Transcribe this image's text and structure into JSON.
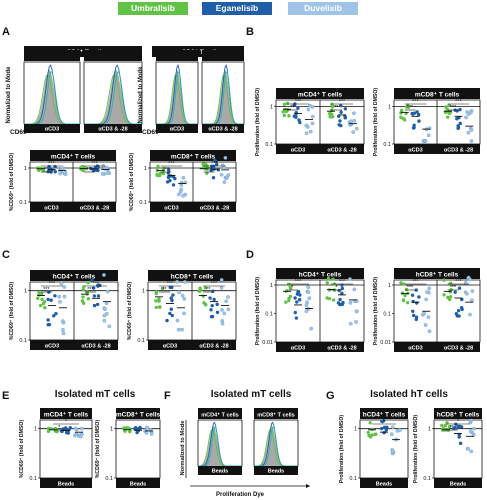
{
  "legend": [
    {
      "label": "Umbralisib",
      "color": "#62c246"
    },
    {
      "label": "Eganelisib",
      "color": "#1f5fa8"
    },
    {
      "label": "Duvelisib",
      "color": "#9fc4e8"
    }
  ],
  "panel_labels": {
    "a": "A",
    "b": "B",
    "c": "C",
    "d": "D",
    "e": "E",
    "f": "F",
    "g": "G"
  },
  "section_titles": {
    "e": "Isolated mT cells",
    "f": "Isolated mT cells",
    "g": "Isolated hT cells"
  },
  "headers": {
    "mcd4": "mCD4⁺ T cells",
    "mcd8": "mCD8⁺ T cells",
    "hcd4": "hCD4⁺ T cells",
    "hcd8": "hCD8⁺ T cells"
  },
  "axis": {
    "normalized_to_mode": "Normalized to Mode",
    "cd69": "CD69",
    "proliferation_dye": "Proliferation Dye",
    "pct_cd69": "%CD69⁺ (fold of DMSO)",
    "proliferation": "Proliferation (fold of DMSO)",
    "acd3": "αCD3",
    "acd3_28": "αCD3 & -28",
    "beads": "Beads"
  },
  "sig": {
    "three": "***",
    "two": "**",
    "one": "*"
  },
  "ticks": {
    "t1": "1",
    "t01": "0.1",
    "t001": "0.01"
  },
  "chart_data": [
    {
      "panel": "A-bottom-left",
      "type": "scatter",
      "title": "mCD4⁺ T cells",
      "ylabel": "%CD69⁺ (fold of DMSO)",
      "yscale": "log",
      "categories": [
        "αCD3",
        "αCD3 & -28"
      ],
      "series": [
        {
          "name": "Umbralisib",
          "values": [
            0.95,
            0.97
          ]
        },
        {
          "name": "Eganelisib",
          "values": [
            0.9,
            0.94
          ]
        },
        {
          "name": "Duvelisib",
          "values": [
            0.85,
            0.9
          ]
        }
      ]
    },
    {
      "panel": "A-bottom-right",
      "type": "scatter",
      "title": "mCD8⁺ T cells",
      "ylabel": "%CD69⁺ (fold of DMSO)",
      "yscale": "log",
      "categories": [
        "αCD3",
        "αCD3 & -28"
      ],
      "series": [
        {
          "name": "Umbralisib",
          "values": [
            0.85,
            0.95
          ]
        },
        {
          "name": "Eganelisib",
          "values": [
            0.6,
            0.92
          ]
        },
        {
          "name": "Duvelisib",
          "values": [
            0.35,
            0.88
          ]
        }
      ]
    },
    {
      "panel": "B-left",
      "type": "scatter",
      "title": "mCD4⁺ T cells",
      "ylabel": "Proliferation (fold of DMSO)",
      "yscale": "log",
      "categories": [
        "αCD3",
        "αCD3 & -28"
      ],
      "series": [
        {
          "name": "Umbralisib",
          "values": [
            0.85,
            0.75
          ]
        },
        {
          "name": "Eganelisib",
          "values": [
            0.65,
            0.6
          ]
        },
        {
          "name": "Duvelisib",
          "values": [
            0.45,
            0.35
          ]
        }
      ]
    },
    {
      "panel": "B-right",
      "type": "scatter",
      "title": "mCD8⁺ T cells",
      "ylabel": "Proliferation (fold of DMSO)",
      "yscale": "log",
      "categories": [
        "αCD3",
        "αCD3 & -28"
      ],
      "series": [
        {
          "name": "Umbralisib",
          "values": [
            0.7,
            0.75
          ]
        },
        {
          "name": "Eganelisib",
          "values": [
            0.55,
            0.55
          ]
        },
        {
          "name": "Duvelisib",
          "values": [
            0.25,
            0.3
          ]
        }
      ]
    },
    {
      "panel": "C-left",
      "type": "scatter",
      "title": "hCD4⁺ T cells",
      "ylabel": "%CD69⁺ (fold of DMSO)",
      "yscale": "log",
      "categories": [
        "αCD3",
        "αCD3 & -28"
      ],
      "series": [
        {
          "name": "Umbralisib",
          "values": [
            0.8,
            0.85
          ]
        },
        {
          "name": "Eganelisib",
          "values": [
            0.5,
            0.7
          ]
        },
        {
          "name": "Duvelisib",
          "values": [
            0.45,
            0.6
          ]
        }
      ]
    },
    {
      "panel": "C-right",
      "type": "scatter",
      "title": "hCD8⁺ T cells",
      "ylabel": "%CD69⁺ (fold of DMSO)",
      "yscale": "log",
      "categories": [
        "αCD3",
        "αCD3 & -28"
      ],
      "series": [
        {
          "name": "Umbralisib",
          "values": [
            0.75,
            0.8
          ]
        },
        {
          "name": "Eganelisib",
          "values": [
            0.55,
            0.6
          ]
        },
        {
          "name": "Duvelisib",
          "values": [
            0.45,
            0.5
          ]
        }
      ]
    },
    {
      "panel": "D-left",
      "type": "scatter",
      "title": "hCD4⁺ T cells",
      "ylabel": "Proliferation (fold of DMSO)",
      "yscale": "log",
      "categories": [
        "αCD3",
        "αCD3 & -28"
      ],
      "series": [
        {
          "name": "Umbralisib",
          "values": [
            0.6,
            0.7
          ]
        },
        {
          "name": "Eganelisib",
          "values": [
            0.2,
            0.45
          ]
        },
        {
          "name": "Duvelisib",
          "values": [
            0.15,
            0.3
          ]
        }
      ]
    },
    {
      "panel": "D-right",
      "type": "scatter",
      "title": "hCD8⁺ T cells",
      "ylabel": "Proliferation (fold of DMSO)",
      "yscale": "log",
      "categories": [
        "αCD3",
        "αCD3 & -28"
      ],
      "series": [
        {
          "name": "Umbralisib",
          "values": [
            0.5,
            0.6
          ]
        },
        {
          "name": "Eganelisib",
          "values": [
            0.25,
            0.35
          ]
        },
        {
          "name": "Duvelisib",
          "values": [
            0.12,
            0.25
          ]
        }
      ]
    },
    {
      "panel": "E-left",
      "type": "scatter",
      "title": "mCD4⁺ T cells",
      "ylabel": "%CD69⁺ (fold of DMSO)",
      "yscale": "log",
      "categories": [
        "Beads"
      ],
      "series": [
        {
          "name": "Umbralisib",
          "values": [
            0.95
          ]
        },
        {
          "name": "Eganelisib",
          "values": [
            0.92
          ]
        },
        {
          "name": "Duvelisib",
          "values": [
            0.85
          ]
        }
      ]
    },
    {
      "panel": "E-right",
      "type": "scatter",
      "title": "mCD8⁺ T cells",
      "ylabel": "%CD69⁺ (fold of DMSO)",
      "yscale": "log",
      "categories": [
        "Beads"
      ],
      "series": [
        {
          "name": "Umbralisib",
          "values": [
            0.95
          ]
        },
        {
          "name": "Eganelisib",
          "values": [
            0.93
          ]
        },
        {
          "name": "Duvelisib",
          "values": [
            0.9
          ]
        }
      ]
    },
    {
      "panel": "G-left",
      "type": "scatter",
      "title": "hCD4⁺ T cells",
      "ylabel": "Proliferation (fold of DMSO)",
      "yscale": "log",
      "categories": [
        "Beads"
      ],
      "series": [
        {
          "name": "Umbralisib",
          "values": [
            0.95
          ]
        },
        {
          "name": "Eganelisib",
          "values": [
            0.85
          ]
        },
        {
          "name": "Duvelisib",
          "values": [
            0.6
          ]
        }
      ]
    },
    {
      "panel": "G-right",
      "type": "scatter",
      "title": "hCD8⁺ T cells",
      "ylabel": "Proliferation (fold of DMSO)",
      "yscale": "log",
      "categories": [
        "Beads"
      ],
      "series": [
        {
          "name": "Umbralisib",
          "values": [
            0.95
          ]
        },
        {
          "name": "Eganelisib",
          "values": [
            0.8
          ]
        },
        {
          "name": "Duvelisib",
          "values": [
            0.7
          ]
        }
      ]
    }
  ]
}
